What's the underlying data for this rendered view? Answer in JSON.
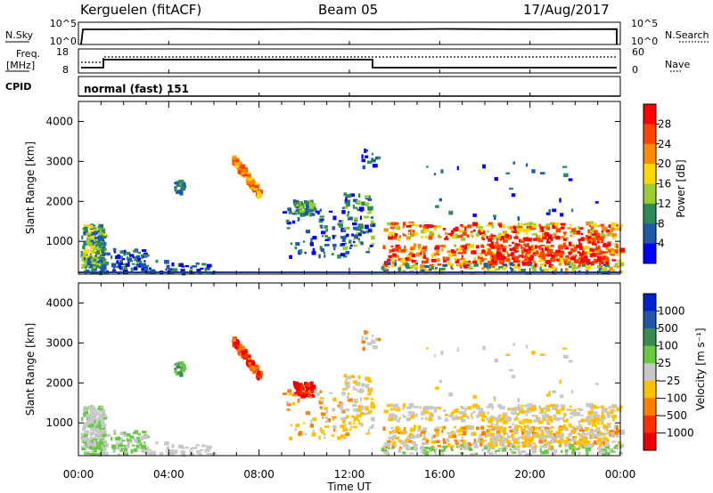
{
  "header": {
    "station": "Kerguelen (fitACF)",
    "beam": "Beam 05",
    "date": "17/Aug/2017"
  },
  "meta_panels": {
    "nsky_label": "N.Sky",
    "nsky_ticks": [
      "10^5",
      "10^0"
    ],
    "nsearch_label": "N.Search",
    "nsearch_ticks": [
      "10^5",
      "10^0"
    ],
    "freq_label_line1": "Freq.",
    "freq_label_line2": "[MHz]",
    "freq_ticks": [
      "18",
      "8"
    ],
    "nave_label": "Nave",
    "nave_ticks": [
      "60",
      "0"
    ],
    "cpid_label": "CPID",
    "cpid_value": "normal (fast) 151"
  },
  "chart_data": [
    {
      "type": "heatmap",
      "quantity": "Power",
      "ylabel": "Slant Range [km]",
      "xlabel": "Time UT",
      "xlim_hours": [
        0,
        24
      ],
      "ylim": [
        180,
        4500
      ],
      "yticks": [
        "4000",
        "3000",
        "2000",
        "1000"
      ],
      "xticks": [
        "00:00",
        "04:00",
        "08:00",
        "12:00",
        "16:00",
        "20:00",
        "00:00"
      ],
      "colorbar_label": "Power [dB]",
      "colorbar_ticks": [
        "28",
        "24",
        "20",
        "16",
        "12",
        "8",
        "4"
      ],
      "colorbar_colors": [
        "#ff0000",
        "#ff4400",
        "#ff8c00",
        "#ffd700",
        "#9acd32",
        "#2e8b57",
        "#1e5aa8",
        "#0000ff"
      ]
    },
    {
      "type": "heatmap",
      "quantity": "Velocity",
      "ylabel": "Slant Range [km]",
      "xlabel": "Time UT",
      "xlim_hours": [
        0,
        24
      ],
      "ylim": [
        180,
        4500
      ],
      "yticks": [
        "4000",
        "3000",
        "2000",
        "1000"
      ],
      "xticks": [
        "00:00",
        "04:00",
        "08:00",
        "12:00",
        "16:00",
        "20:00",
        "00:00"
      ],
      "colorbar_label": "Velocity [m s⁻¹]",
      "colorbar_ticks": [
        "1000",
        "500",
        "100",
        "25",
        "−25",
        "−100",
        "−500",
        "−1000"
      ],
      "colorbar_colors": [
        "#0022cc",
        "#2255aa",
        "#3a8a55",
        "#66c844",
        "#c8c8c8",
        "#ffc000",
        "#ff8000",
        "#ff3000",
        "#ee0000"
      ]
    }
  ]
}
